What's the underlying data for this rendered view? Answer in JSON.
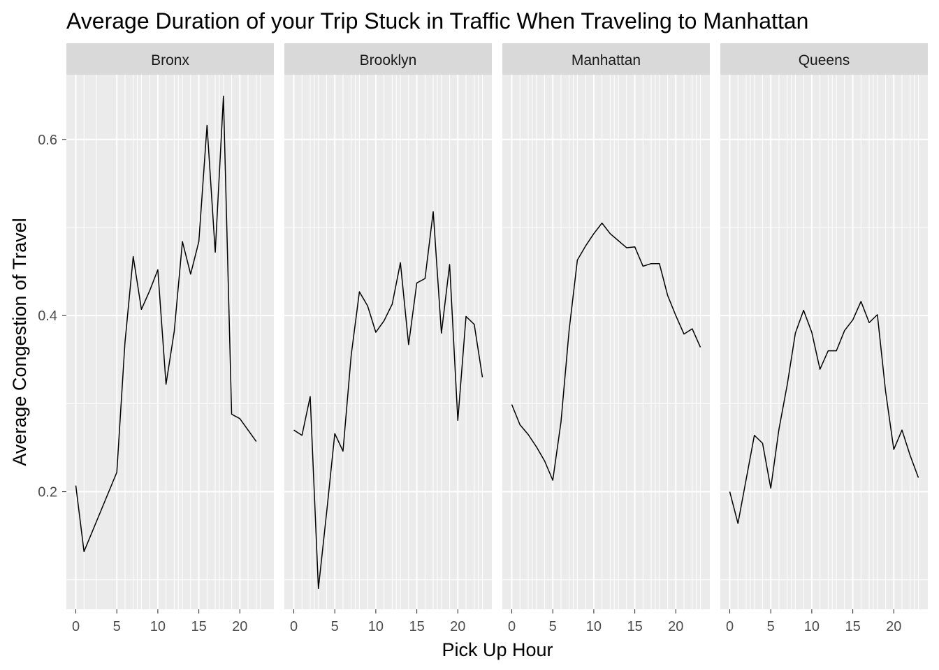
{
  "chart_data": {
    "type": "line",
    "title": "Average Duration of your Trip Stuck in Traffic When Traveling to Manhattan",
    "xlabel": "Pick Up Hour",
    "ylabel": "Average Congestion of Travel",
    "xlim": [
      -1.15,
      24.15
    ],
    "ylim": [
      0.0665,
      0.6735
    ],
    "x_ticks": [
      0,
      5,
      10,
      15,
      20
    ],
    "y_ticks": [
      0.2,
      0.4,
      0.6
    ],
    "y_tick_labels": [
      "0.2",
      "0.4",
      "0.6"
    ],
    "grid": true,
    "background": "#EBEBEB",
    "strip_color": "#D9D9D9",
    "grid_color": "#FFFFFF",
    "line_color": "#000000",
    "panels": [
      {
        "name": "Bronx",
        "x": [
          0,
          1,
          5,
          6,
          7,
          8,
          9,
          10,
          11,
          12,
          13,
          14,
          15,
          16,
          17,
          18,
          19,
          20,
          21,
          22
        ],
        "y": [
          0.207,
          0.132,
          0.222,
          0.37,
          0.467,
          0.407,
          0.428,
          0.452,
          0.322,
          0.382,
          0.484,
          0.447,
          0.484,
          0.616,
          0.472,
          0.649,
          0.288,
          0.283,
          0.27,
          0.257
        ]
      },
      {
        "name": "Brooklyn",
        "x": [
          0,
          1,
          2,
          3,
          4,
          5,
          6,
          7,
          8,
          9,
          10,
          11,
          12,
          13,
          14,
          15,
          16,
          17,
          18,
          19,
          20,
          21,
          22,
          23
        ],
        "y": [
          0.27,
          0.264,
          0.308,
          0.09,
          0.176,
          0.266,
          0.246,
          0.355,
          0.427,
          0.411,
          0.381,
          0.394,
          0.413,
          0.46,
          0.367,
          0.437,
          0.442,
          0.518,
          0.38,
          0.458,
          0.281,
          0.399,
          0.39,
          0.33
        ]
      },
      {
        "name": "Manhattan",
        "x": [
          0,
          1,
          2,
          3,
          4,
          5,
          6,
          7,
          8,
          9,
          10,
          11,
          12,
          13,
          14,
          15,
          16,
          17,
          18,
          19,
          20,
          21,
          22,
          23
        ],
        "y": [
          0.299,
          0.276,
          0.265,
          0.251,
          0.235,
          0.213,
          0.279,
          0.384,
          0.463,
          0.479,
          0.493,
          0.505,
          0.493,
          0.485,
          0.477,
          0.478,
          0.456,
          0.459,
          0.459,
          0.423,
          0.4,
          0.379,
          0.385,
          0.364
        ]
      },
      {
        "name": "Queens",
        "x": [
          0,
          1,
          2,
          3,
          4,
          5,
          6,
          7,
          8,
          9,
          10,
          11,
          12,
          13,
          14,
          15,
          16,
          17,
          18,
          19,
          20,
          21,
          22,
          23
        ],
        "y": [
          0.2,
          0.164,
          0.214,
          0.264,
          0.255,
          0.204,
          0.271,
          0.321,
          0.38,
          0.406,
          0.381,
          0.339,
          0.36,
          0.36,
          0.383,
          0.395,
          0.416,
          0.392,
          0.401,
          0.314,
          0.248,
          0.27,
          0.241,
          0.216
        ]
      }
    ]
  }
}
